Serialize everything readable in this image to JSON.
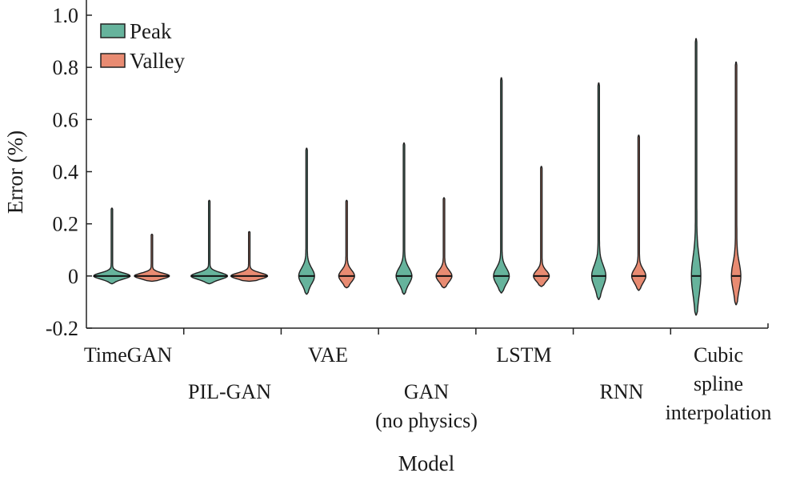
{
  "chart_data": {
    "type": "violin",
    "xlabel": "Model",
    "ylabel": "Error (%)",
    "ylim": [
      -0.2,
      1.0
    ],
    "yticks": [
      "-0.2",
      "0",
      "0.2",
      "0.4",
      "0.6",
      "0.8",
      "1.0"
    ],
    "categories": [
      [
        "TimeGAN"
      ],
      [
        "PIL-GAN"
      ],
      [
        "VAE"
      ],
      [
        "GAN",
        "(no physics)"
      ],
      [
        "LSTM"
      ],
      [
        "RNN"
      ],
      [
        "Cubic",
        "spline",
        "interpolation"
      ]
    ],
    "legend": {
      "position": "top-left",
      "entries": [
        "Peak",
        "Valley"
      ]
    },
    "colors": {
      "Peak": "#66b39c",
      "Valley": "#e88b72"
    },
    "grid": false,
    "series": [
      {
        "name": "Peak",
        "median": [
          0,
          0,
          0,
          0,
          0,
          0,
          0
        ],
        "max": [
          0.26,
          0.29,
          0.49,
          0.51,
          0.76,
          0.74,
          0.91
        ],
        "min": [
          -0.03,
          -0.03,
          -0.07,
          -0.07,
          -0.065,
          -0.09,
          -0.15
        ]
      },
      {
        "name": "Valley",
        "median": [
          0,
          0,
          0,
          0,
          0,
          0,
          0
        ],
        "max": [
          0.16,
          0.17,
          0.29,
          0.3,
          0.42,
          0.54,
          0.82
        ],
        "min": [
          -0.02,
          -0.02,
          -0.045,
          -0.045,
          -0.04,
          -0.055,
          -0.11
        ]
      }
    ]
  }
}
